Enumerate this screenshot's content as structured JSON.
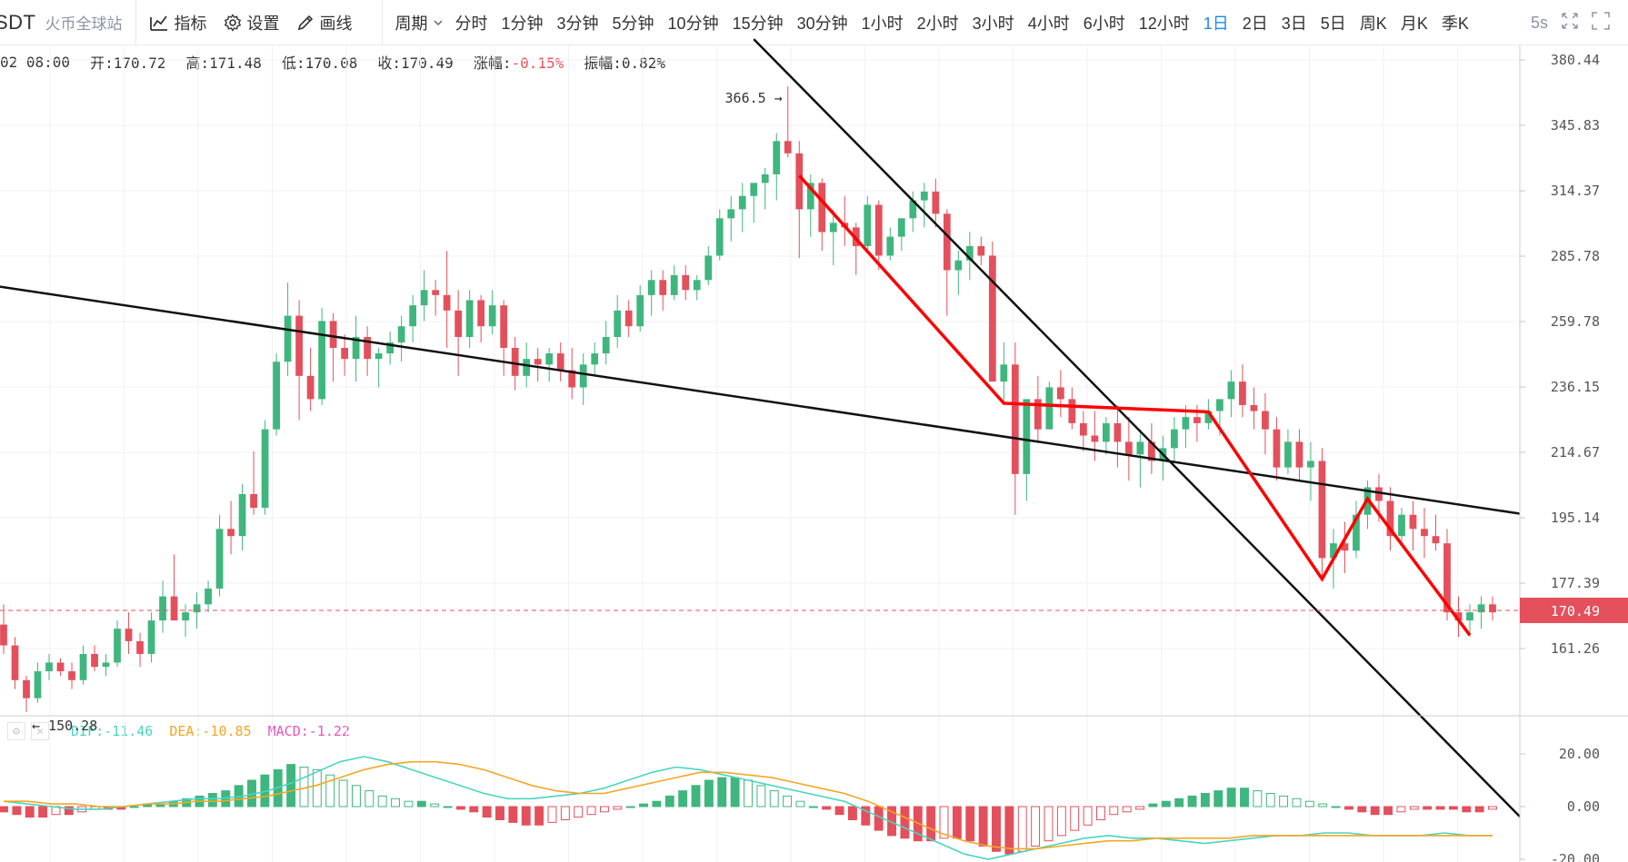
{
  "toolbar": {
    "symbol": "SDT",
    "exchange": "火币全球站",
    "indicators_label": "指标",
    "settings_label": "设置",
    "draw_label": "画线",
    "period_label": "周期",
    "periods": [
      "分时",
      "1分钟",
      "3分钟",
      "5分钟",
      "10分钟",
      "15分钟",
      "30分钟",
      "1小时",
      "2小时",
      "3小时",
      "4小时",
      "6小时",
      "12小时",
      "1日",
      "2日",
      "3日",
      "5日",
      "周K",
      "月K",
      "季K"
    ],
    "active_period": "1日",
    "interval_label": "5s"
  },
  "ohlc": {
    "date": "02 08:00",
    "open": "开:170.72",
    "high": "高:171.48",
    "low": "低:170.08",
    "close": "收:170.49",
    "change_label": "涨幅:",
    "change_value": "-0.15%",
    "amplitude": "振幅:0.82%"
  },
  "colors": {
    "up": "#3fb67d",
    "down": "#e3505c",
    "trend_line": "#111111",
    "pattern_line": "#ff0000",
    "dif": "#48d5c1",
    "dea": "#f5a623",
    "macd": "#e455b8",
    "price_tag": "#e3505c"
  },
  "macd_legend": {
    "dif": "DIF:-11.46",
    "dea": "DEA:-10.85",
    "macd": "MACD:-1.22"
  },
  "chart_data": [
    {
      "type": "candlestick",
      "price_axis_ticks": [
        "380.44",
        "345.83",
        "314.37",
        "285.78",
        "259.78",
        "236.15",
        "214.67",
        "195.14",
        "177.39",
        "161.26"
      ],
      "log_scale": true,
      "last_price": "170.49",
      "high_marker": "366.5",
      "low_marker": "150.28",
      "candles": [
        [
          167,
          172,
          160,
          162
        ],
        [
          162,
          164,
          152,
          154
        ],
        [
          154,
          155,
          147,
          150
        ],
        [
          150,
          158,
          149,
          156
        ],
        [
          156,
          160,
          154,
          158
        ],
        [
          158,
          159,
          155,
          156
        ],
        [
          156,
          158,
          152,
          154
        ],
        [
          154,
          162,
          153,
          160
        ],
        [
          160,
          162,
          156,
          157
        ],
        [
          157,
          160,
          155,
          158
        ],
        [
          158,
          168,
          157,
          166
        ],
        [
          166,
          170,
          160,
          163
        ],
        [
          163,
          165,
          157,
          160
        ],
        [
          160,
          170,
          158,
          168
        ],
        [
          168,
          178,
          165,
          174
        ],
        [
          174,
          185,
          170,
          168
        ],
        [
          168,
          172,
          164,
          170
        ],
        [
          170,
          175,
          166,
          172
        ],
        [
          172,
          178,
          170,
          176
        ],
        [
          176,
          196,
          174,
          192
        ],
        [
          192,
          200,
          185,
          190
        ],
        [
          190,
          205,
          186,
          202
        ],
        [
          202,
          215,
          196,
          198
        ],
        [
          198,
          225,
          196,
          222
        ],
        [
          222,
          248,
          220,
          245
        ],
        [
          245,
          275,
          240,
          262
        ],
        [
          262,
          268,
          225,
          240
        ],
        [
          240,
          250,
          228,
          232
        ],
        [
          232,
          265,
          230,
          260
        ],
        [
          260,
          263,
          238,
          250
        ],
        [
          250,
          255,
          240,
          246
        ],
        [
          246,
          262,
          238,
          254
        ],
        [
          254,
          258,
          240,
          246
        ],
        [
          246,
          250,
          236,
          248
        ],
        [
          248,
          256,
          244,
          252
        ],
        [
          252,
          262,
          245,
          258
        ],
        [
          258,
          270,
          252,
          266
        ],
        [
          266,
          280,
          260,
          272
        ],
        [
          272,
          276,
          262,
          270
        ],
        [
          270,
          288,
          250,
          264
        ],
        [
          264,
          272,
          240,
          254
        ],
        [
          254,
          272,
          250,
          268
        ],
        [
          268,
          270,
          252,
          258
        ],
        [
          258,
          272,
          255,
          266
        ],
        [
          266,
          268,
          240,
          250
        ],
        [
          250,
          254,
          235,
          240
        ],
        [
          240,
          252,
          236,
          246
        ],
        [
          246,
          250,
          238,
          244
        ],
        [
          244,
          250,
          238,
          248
        ],
        [
          248,
          252,
          238,
          242
        ],
        [
          242,
          250,
          232,
          236
        ],
        [
          236,
          248,
          230,
          244
        ],
        [
          244,
          252,
          240,
          248
        ],
        [
          248,
          260,
          244,
          254
        ],
        [
          254,
          270,
          250,
          264
        ],
        [
          264,
          268,
          254,
          258
        ],
        [
          258,
          274,
          256,
          270
        ],
        [
          270,
          280,
          262,
          276
        ],
        [
          276,
          280,
          264,
          270
        ],
        [
          270,
          282,
          268,
          278
        ],
        [
          278,
          282,
          268,
          272
        ],
        [
          272,
          278,
          268,
          276
        ],
        [
          276,
          290,
          274,
          286
        ],
        [
          286,
          306,
          284,
          302
        ],
        [
          302,
          312,
          292,
          306
        ],
        [
          306,
          318,
          296,
          312
        ],
        [
          312,
          316,
          300,
          318
        ],
        [
          318,
          325,
          306,
          322
        ],
        [
          322,
          342,
          310,
          338
        ],
        [
          338,
          366,
          330,
          332
        ],
        [
          332,
          338,
          285,
          306
        ],
        [
          306,
          322,
          294,
          318
        ],
        [
          318,
          320,
          288,
          296
        ],
        [
          296,
          306,
          282,
          300
        ],
        [
          300,
          312,
          290,
          298
        ],
        [
          298,
          300,
          278,
          290
        ],
        [
          290,
          312,
          288,
          308
        ],
        [
          308,
          310,
          280,
          286
        ],
        [
          286,
          298,
          284,
          294
        ],
        [
          294,
          300,
          288,
          302
        ],
        [
          302,
          314,
          296,
          310
        ],
        [
          310,
          318,
          298,
          314
        ],
        [
          314,
          320,
          298,
          304
        ],
        [
          304,
          306,
          262,
          280
        ],
        [
          280,
          288,
          270,
          284
        ],
        [
          284,
          296,
          276,
          290
        ],
        [
          290,
          294,
          282,
          286
        ],
        [
          286,
          292,
          240,
          238
        ],
        [
          238,
          252,
          230,
          244
        ],
        [
          244,
          252,
          196,
          208
        ],
        [
          208,
          230,
          200,
          232
        ],
        [
          232,
          240,
          218,
          222
        ],
        [
          222,
          238,
          222,
          236
        ],
        [
          236,
          242,
          226,
          232
        ],
        [
          232,
          236,
          222,
          224
        ],
        [
          224,
          228,
          215,
          220
        ],
        [
          220,
          228,
          212,
          218
        ],
        [
          218,
          226,
          214,
          224
        ],
        [
          224,
          230,
          210,
          218
        ],
        [
          218,
          226,
          206,
          214
        ],
        [
          214,
          222,
          204,
          218
        ],
        [
          218,
          224,
          208,
          212
        ],
        [
          212,
          220,
          206,
          216
        ],
        [
          216,
          226,
          212,
          222
        ],
        [
          222,
          230,
          216,
          226
        ],
        [
          226,
          230,
          218,
          224
        ],
        [
          224,
          232,
          222,
          228
        ],
        [
          228,
          230,
          220,
          232
        ],
        [
          232,
          242,
          226,
          238
        ],
        [
          238,
          244,
          226,
          230
        ],
        [
          230,
          236,
          222,
          228
        ],
        [
          228,
          234,
          214,
          222
        ],
        [
          222,
          226,
          206,
          210
        ],
        [
          210,
          222,
          208,
          218
        ],
        [
          218,
          222,
          206,
          210
        ],
        [
          210,
          218,
          200,
          212
        ],
        [
          212,
          216,
          178,
          184
        ],
        [
          184,
          192,
          176,
          188
        ],
        [
          188,
          194,
          180,
          186
        ],
        [
          186,
          200,
          184,
          196
        ],
        [
          196,
          206,
          192,
          204
        ],
        [
          204,
          208,
          194,
          200
        ],
        [
          200,
          204,
          186,
          190
        ],
        [
          190,
          198,
          188,
          196
        ],
        [
          196,
          200,
          186,
          192
        ],
        [
          192,
          198,
          184,
          190
        ],
        [
          190,
          196,
          186,
          188
        ],
        [
          188,
          192,
          168,
          170
        ],
        [
          170,
          174,
          164,
          168
        ],
        [
          168,
          172,
          164,
          170
        ],
        [
          170,
          174,
          166,
          172
        ],
        [
          172,
          174,
          168,
          170
        ]
      ]
    },
    {
      "type": "macd",
      "axis_ticks": [
        "20.00",
        "0.00",
        "-20.00"
      ],
      "histogram": [
        -2,
        -3,
        -4,
        -4,
        -3,
        -3,
        -2,
        -1,
        -1,
        -1,
        0,
        1,
        1,
        2,
        3,
        4,
        5,
        6,
        8,
        10,
        12,
        14,
        16,
        15,
        14,
        12,
        10,
        8,
        6,
        4,
        3,
        2,
        2,
        1,
        0,
        -1,
        -2,
        -4,
        -5,
        -6,
        -7,
        -7,
        -6,
        -5,
        -4,
        -3,
        -2,
        -1,
        0,
        1,
        2,
        4,
        6,
        8,
        10,
        11,
        11,
        10,
        8,
        6,
        4,
        2,
        0,
        -1,
        -3,
        -5,
        -7,
        -9,
        -11,
        -12,
        -13,
        -13,
        -12,
        -12,
        -13,
        -15,
        -17,
        -18,
        -17,
        -15,
        -13,
        -11,
        -9,
        -7,
        -5,
        -3,
        -2,
        -1,
        1,
        2,
        3,
        4,
        5,
        6,
        7,
        7,
        6,
        5,
        4,
        3,
        2,
        1,
        0,
        -1,
        -2,
        -3,
        -3,
        -2,
        -1,
        -1,
        -1,
        -1,
        -2,
        -2,
        -1
      ],
      "dif": [
        2,
        1,
        0,
        -1,
        -1,
        0,
        1,
        2,
        3,
        3,
        4,
        6,
        9,
        13,
        17,
        19,
        17,
        14,
        11,
        8,
        5,
        3,
        3,
        4,
        5,
        7,
        10,
        13,
        15,
        14,
        12,
        10,
        8,
        6,
        4,
        2,
        -2,
        -6,
        -10,
        -14,
        -18,
        -20,
        -18,
        -16,
        -14,
        -12,
        -11,
        -12,
        -12,
        -13,
        -14,
        -13,
        -12,
        -11,
        -11,
        -10,
        -10,
        -11,
        -11,
        -11,
        -10,
        -11,
        -11
      ],
      "dea": [
        2,
        2,
        1,
        1,
        0,
        0,
        1,
        1,
        2,
        2,
        3,
        4,
        6,
        8,
        11,
        14,
        16,
        17,
        17,
        16,
        14,
        11,
        8,
        6,
        5,
        5,
        7,
        9,
        11,
        13,
        13,
        12,
        11,
        9,
        7,
        5,
        2,
        -2,
        -6,
        -10,
        -13,
        -15,
        -16,
        -16,
        -15,
        -14,
        -13,
        -13,
        -12,
        -12,
        -12,
        -12,
        -11,
        -11,
        -11,
        -11,
        -11,
        -11,
        -11,
        -11,
        -11,
        -11,
        -11
      ]
    }
  ]
}
